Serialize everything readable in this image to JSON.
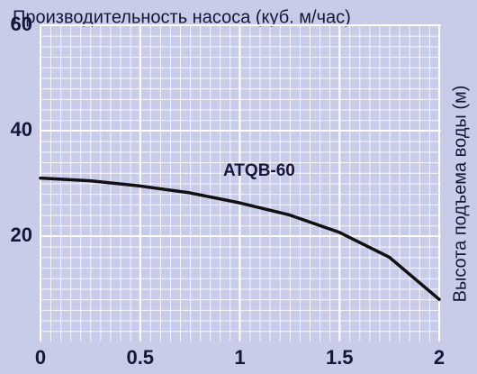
{
  "chart_data": {
    "type": "line",
    "title": "Производительность насоса (куб. м/час)",
    "y_label": "Высота подъема воды (м)",
    "x": [
      0,
      0.25,
      0.5,
      0.75,
      1,
      1.25,
      1.5,
      1.75,
      2
    ],
    "series": [
      {
        "name": "ATQB-60",
        "color": "#111111",
        "values": [
          31,
          30.5,
          29.5,
          28.2,
          26.3,
          24,
          20.7,
          16,
          8
        ]
      }
    ],
    "xlim": [
      0,
      2
    ],
    "xticks": [
      0,
      0.5,
      1,
      1.5,
      2
    ],
    "ylim": [
      0,
      60
    ],
    "yticks": [
      20,
      40,
      60
    ],
    "grid": true
  }
}
